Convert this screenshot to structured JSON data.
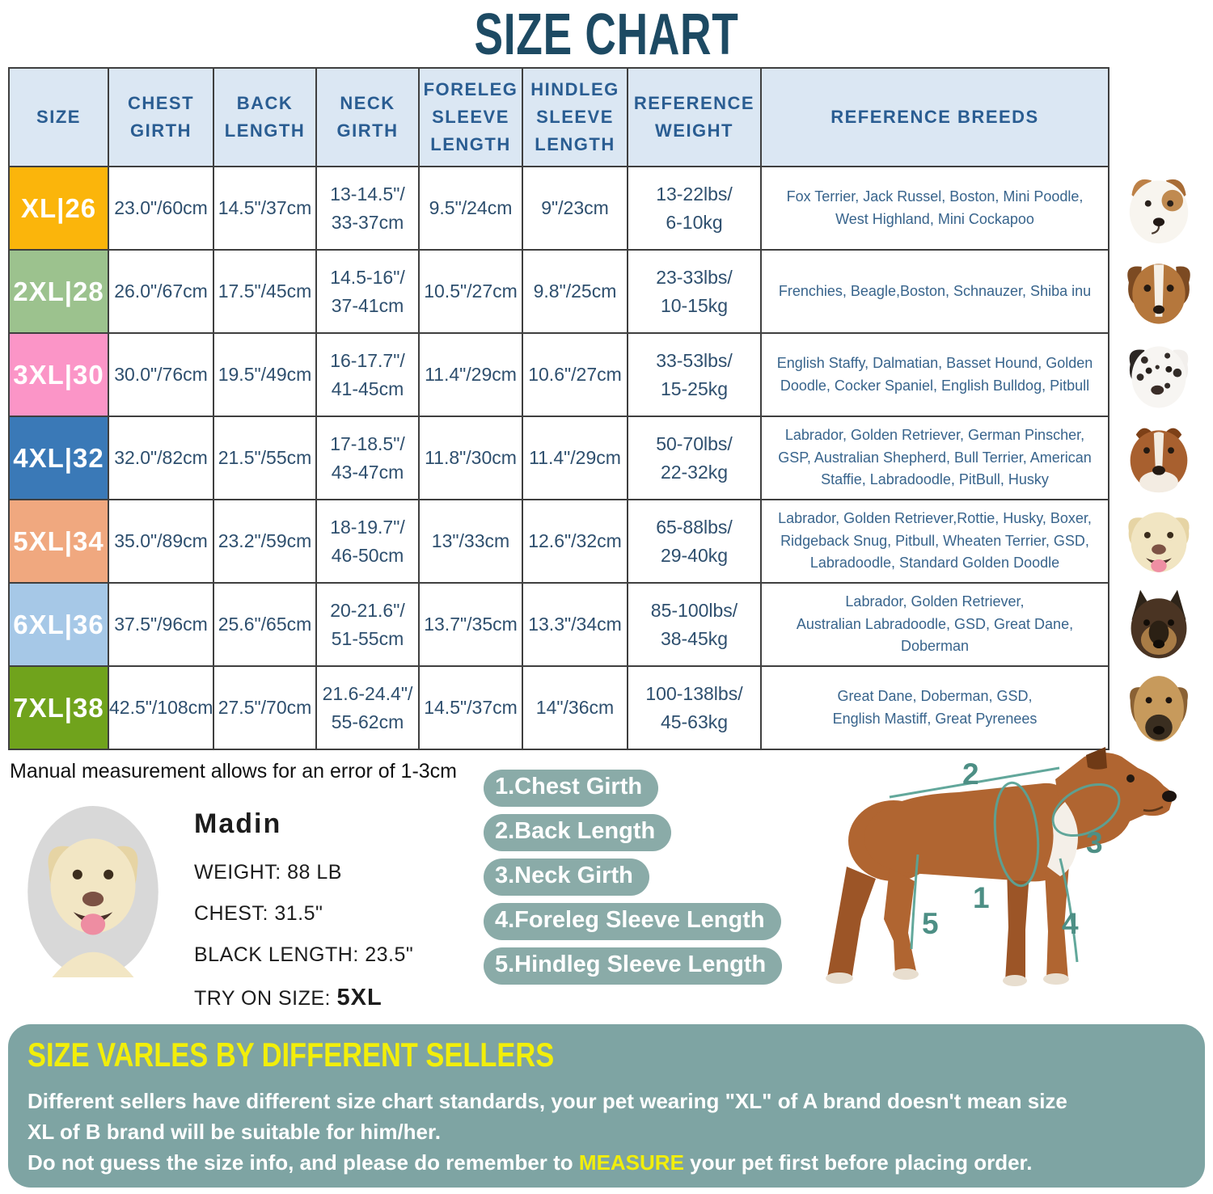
{
  "title": "SIZE CHART",
  "note": "Manual measurement allows for an error of 1-3cm",
  "colors": {
    "title": "#1d4a63",
    "header_navy": "#122d6e",
    "header_light_blue": "#dbe7f3",
    "table_text": "#2e4f6e",
    "banner_bg": "#7ea4a3",
    "banner_yellow": "#f2ee0a",
    "pill_bg": "#8aaba8",
    "measure_line_teal": "#5aa396"
  },
  "table": {
    "headers": [
      "SIZE",
      "CHEST\nGIRTH",
      "BACK\nLENGTH",
      "NECK\nGIRTH",
      "FORELEG\nSLEEVE\nLENGTH",
      "HINDLEG\nSLEEVE\nLENGTH",
      "REFERENCE\nWEIGHT",
      "REFERENCE  BREEDS"
    ],
    "rows": [
      {
        "size": "XL|26",
        "color": "#fbb50b",
        "chest": "23.0\"/60cm",
        "back": "14.5\"/37cm",
        "neck": "13-14.5\"/\n33-37cm",
        "foreleg": "9.5\"/24cm",
        "hindleg": "9\"/23cm",
        "weight": "13-22lbs/\n6-10kg",
        "breeds": "Fox Terrier, Jack Russel, Boston, Mini Poodle,\nWest Highland, Mini Cockapoo",
        "dog_icon": "jack-russell-photo"
      },
      {
        "size": "2XL|28",
        "color": "#9cc28e",
        "chest": "26.0\"/67cm",
        "back": "17.5\"/45cm",
        "neck": "14.5-16\"/\n37-41cm",
        "foreleg": "10.5\"/27cm",
        "hindleg": "9.8\"/25cm",
        "weight": "23-33lbs/\n10-15kg",
        "breeds": "Frenchies, Beagle,Boston, Schnauzer, Shiba inu",
        "dog_icon": "beagle-photo"
      },
      {
        "size": "3XL|30",
        "color": "#fb95c7",
        "chest": "30.0\"/76cm",
        "back": "19.5\"/49cm",
        "neck": "16-17.7\"/\n41-45cm",
        "foreleg": "11.4\"/29cm",
        "hindleg": "10.6\"/27cm",
        "weight": "33-53lbs/\n15-25kg",
        "breeds": "English Staffy, Dalmatian, Basset Hound, Golden\nDoodle, Cocker Spaniel, English Bulldog, Pitbull",
        "dog_icon": "dalmatian-photo"
      },
      {
        "size": "4XL|32",
        "color": "#3a79b7",
        "chest": "32.0\"/82cm",
        "back": "21.5\"/55cm",
        "neck": "17-18.5\"/\n43-47cm",
        "foreleg": "11.8\"/30cm",
        "hindleg": "11.4\"/29cm",
        "weight": "50-70lbs/\n22-32kg",
        "breeds": "Labrador, Golden Retriever, German Pinscher,\nGSP, Australian Shepherd, Bull Terrier, American\nStaffie, Labradoodle, PitBull, Husky",
        "dog_icon": "amstaff-photo"
      },
      {
        "size": "5XL|34",
        "color": "#f0a87f",
        "chest": "35.0\"/89cm",
        "back": "23.2\"/59cm",
        "neck": "18-19.7\"/\n46-50cm",
        "foreleg": "13\"/33cm",
        "hindleg": "12.6\"/32cm",
        "weight": "65-88lbs/\n29-40kg",
        "breeds": "Labrador, Golden Retriever,Rottie, Husky, Boxer,\nRidgeback Snug, Pitbull, Wheaten Terrier, GSD,\nLabradoodle,  Standard Golden Doodle",
        "dog_icon": "labrador-photo"
      },
      {
        "size": "6XL|36",
        "color": "#a6c8e7",
        "chest": "37.5\"/96cm",
        "back": "25.6\"/65cm",
        "neck": "20-21.6\"/\n51-55cm",
        "foreleg": "13.7\"/35cm",
        "hindleg": "13.3\"/34cm",
        "weight": "85-100lbs/\n38-45kg",
        "breeds": "Labrador, Golden Retriever,\nAustralian Labradoodle, GSD, Great Dane,\nDoberman",
        "dog_icon": "german-shepherd-photo"
      },
      {
        "size": "7XL|38",
        "color": "#70a31c",
        "chest": "42.5\"/108cm",
        "back": "27.5\"/70cm",
        "neck": "21.6-24.4\"/\n55-62cm",
        "foreleg": "14.5\"/37cm",
        "hindleg": "14\"/36cm",
        "weight": "100-138lbs/\n45-63kg",
        "breeds": "Great Dane, Doberman, GSD,\nEnglish Mastiff, Great Pyrenees",
        "dog_icon": "great-dane-photo"
      }
    ]
  },
  "madin": {
    "name": "Madin",
    "weight_line": "WEIGHT: 88 LB",
    "chest_line": "CHEST: 31.5\"",
    "back_line": "BLACK LENGTH: 23.5\"",
    "try_on_label": "TRY ON SIZE:",
    "try_on_size": "5XL",
    "photo_icon": "madin-labrador-photo"
  },
  "measurements": {
    "labels": [
      "1.Chest Girth",
      "2.Back Length",
      "3.Neck Girth",
      "4.Foreleg Sleeve Length",
      "5.Hindleg Sleeve Length"
    ]
  },
  "diagram": {
    "dog_icon": "measured-dog-illustration",
    "markers": [
      "1",
      "2",
      "3",
      "4",
      "5"
    ]
  },
  "banner": {
    "heading": "SIZE VARLES BY DIFFERENT SELLERS",
    "line1": "Different sellers have different size chart standards, your pet wearing \"XL\" of A brand doesn't mean size",
    "line2": "XL of B brand will be suitable for him/her.",
    "line3_before": "Do not guess the size info, and please do remember to ",
    "line3_highlight": "MEASURE",
    "line3_after": " your pet first before placing order."
  }
}
